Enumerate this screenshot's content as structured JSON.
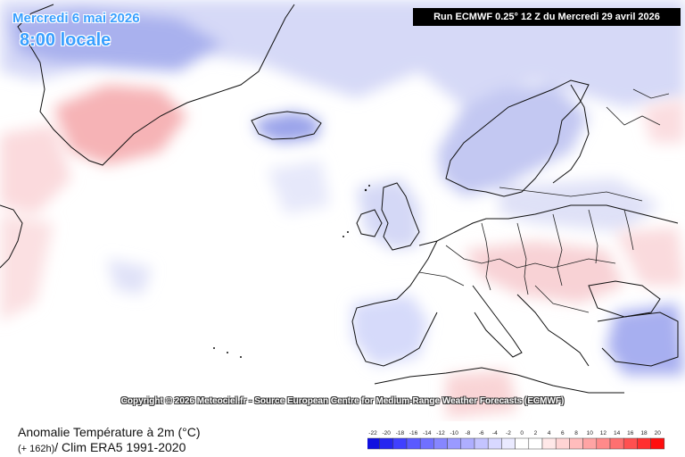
{
  "overlay": {
    "date": "Mercredi 6 mai 2026",
    "time": "8:00 locale"
  },
  "run_info": "Run ECMWF 0.25° 12 Z du Mercredi 29 avril 2026",
  "copyright": "Copyright © 2026 Meteociel.fr - Source European Centre for Medium-Range Weather Forecasts (ECMWF)",
  "footer": {
    "title": "Anomalie Température à 2m (°C)",
    "lead": "(+ 162h)",
    "clim": "/ Clim ERA5 1991-2020"
  },
  "legend": {
    "labels": [
      "-22",
      "-20",
      "-18",
      "-16",
      "-14",
      "-12",
      "-10",
      "-8",
      "-6",
      "-4",
      "-2",
      "0",
      "2",
      "4",
      "6",
      "8",
      "10",
      "12",
      "14",
      "16",
      "18",
      "20"
    ],
    "colors": [
      "#1010e0",
      "#2626f0",
      "#4040ff",
      "#5a5aff",
      "#7070ff",
      "#8686ff",
      "#9a9aff",
      "#aeaeff",
      "#c4c4ff",
      "#d8d8ff",
      "#eaeaff",
      "#ffffff",
      "#ffffff",
      "#ffe8e8",
      "#ffd4d4",
      "#ffbcbc",
      "#ffa4a4",
      "#ff8a8a",
      "#ff7070",
      "#ff5050",
      "#ff3030",
      "#ff0e0e"
    ]
  },
  "palette": {
    "cold": "#c9cdf3",
    "cold_strong": "#9aa4ea",
    "warm": "#f9d4d6",
    "warm_strong": "#f3a2a6"
  }
}
